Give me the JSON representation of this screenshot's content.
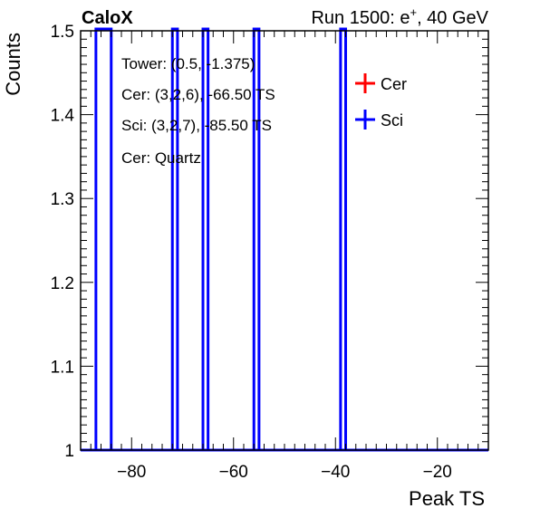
{
  "header": {
    "left_title": "CaloX",
    "right_title_prefix": "Run 1500: e",
    "right_title_sup": "+",
    "right_title_suffix": ", 40 GeV"
  },
  "annotations": [
    "Tower: (0.5, -1.375)",
    "Cer: (3,2,6), -66.50 TS",
    "Sci: (3,2,7), -85.50 TS",
    "Cer: Quartz"
  ],
  "chart_data": {
    "type": "bar",
    "xlabel": "Peak TS",
    "ylabel": "Counts",
    "xlim": [
      -90,
      -10
    ],
    "ylim": [
      1,
      1.5
    ],
    "x_ticks": [
      -80,
      -60,
      -40,
      -20
    ],
    "x_tick_labels": [
      "−80",
      "−60",
      "−40",
      "−20"
    ],
    "y_ticks": [
      1,
      1.1,
      1.2,
      1.3,
      1.4,
      1.5
    ],
    "y_tick_labels": [
      "1",
      "1.1",
      "1.2",
      "1.3",
      "1.4",
      "1.5"
    ],
    "legend_position": "top-right",
    "series": [
      {
        "name": "Cer",
        "color": "#ff0000",
        "bins": [
          {
            "low": -86,
            "high": -85,
            "count": 1
          },
          {
            "low": -66,
            "high": -65,
            "count": 1
          },
          {
            "low": -39,
            "high": -38,
            "count": 1
          }
        ]
      },
      {
        "name": "Sci",
        "color": "#0000ff",
        "bins": [
          {
            "low": -87,
            "high": -84,
            "count": 2
          },
          {
            "low": -72,
            "high": -71,
            "count": 2
          },
          {
            "low": -66,
            "high": -65,
            "count": 2
          },
          {
            "low": -56,
            "high": -55,
            "count": 2
          },
          {
            "low": -39,
            "high": -38,
            "count": 2
          }
        ]
      }
    ]
  }
}
